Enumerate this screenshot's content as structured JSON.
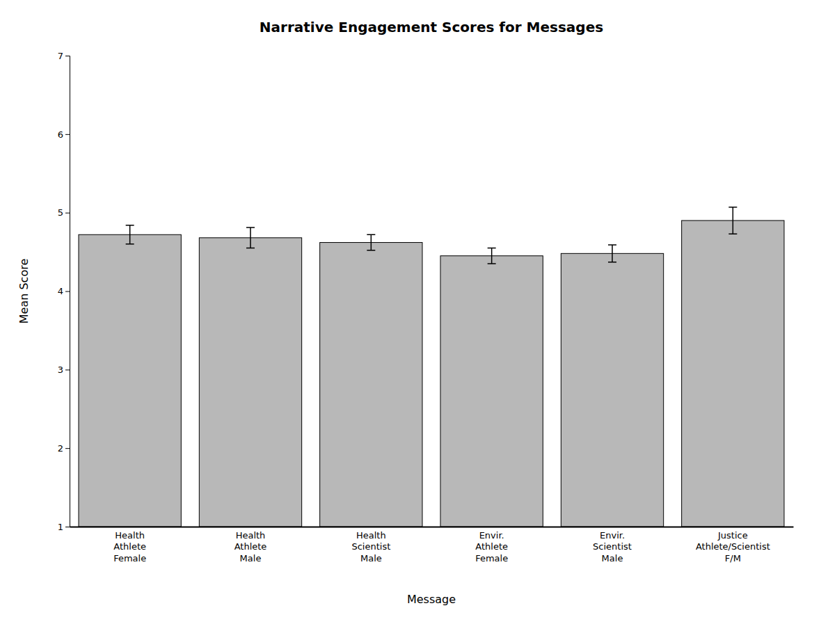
{
  "chart_data": {
    "type": "bar",
    "title": "Narrative Engagement Scores for Messages",
    "xlabel": "Message",
    "ylabel": "Mean Score",
    "categories": [
      "Health\nAthlete\nFemale",
      "Health\nAthlete\nMale",
      "Health\nScientist\nMale",
      "Envir.\nAthlete\nFemale",
      "Envir.\nScientist\nMale",
      "Justice\nAthlete/Scientist\nF/M"
    ],
    "values": [
      4.72,
      4.68,
      4.62,
      4.45,
      4.48,
      4.9
    ],
    "errors": [
      0.12,
      0.13,
      0.1,
      0.1,
      0.11,
      0.17
    ],
    "color": "#b8b8b8",
    "ylim": [
      1,
      7
    ],
    "yticks": [
      1,
      2,
      3,
      4,
      5,
      6,
      7
    ],
    "grid": false
  }
}
